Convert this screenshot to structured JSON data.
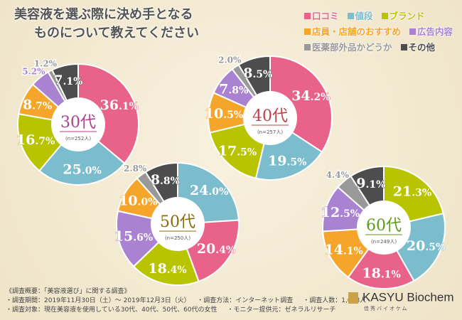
{
  "title": {
    "line1": "美容液を選ぶ際に決め手となる",
    "line2": "ものについて教えてください"
  },
  "legend": [
    {
      "label": "口コミ",
      "color": "#e9628a"
    },
    {
      "label": "値段",
      "color": "#7bbccd"
    },
    {
      "label": "ブランド",
      "color": "#b9c400"
    },
    {
      "label": "店員・店舗のおすすめ",
      "color": "#f5a52a"
    },
    {
      "label": "広告内容",
      "color": "#a982d2"
    },
    {
      "label": "医薬部外品かどうか",
      "color": "#999999"
    },
    {
      "label": "その他",
      "color": "#4d4d4d"
    }
  ],
  "chart_data": [
    {
      "type": "pie",
      "title": "30代",
      "n": "(n=252人)",
      "title_color": "#b0408f",
      "slices": [
        {
          "cat": "口コミ",
          "value": 36.1
        },
        {
          "cat": "値段",
          "value": 25.0
        },
        {
          "cat": "ブランド",
          "value": 16.7
        },
        {
          "cat": "店員・店舗のおすすめ",
          "value": 8.7
        },
        {
          "cat": "広告内容",
          "value": 5.2
        },
        {
          "cat": "医薬部外品かどうか",
          "value": 1.2
        },
        {
          "cat": "その他",
          "value": 7.1
        }
      ]
    },
    {
      "type": "pie",
      "title": "40代",
      "n": "(n=257人)",
      "title_color": "#c0404a",
      "slices": [
        {
          "cat": "口コミ",
          "value": 34.2
        },
        {
          "cat": "値段",
          "value": 19.5
        },
        {
          "cat": "ブランド",
          "value": 17.5
        },
        {
          "cat": "店員・店舗のおすすめ",
          "value": 10.5
        },
        {
          "cat": "広告内容",
          "value": 7.8
        },
        {
          "cat": "医薬部外品かどうか",
          "value": 2.0
        },
        {
          "cat": "その他",
          "value": 8.5
        }
      ]
    },
    {
      "type": "pie",
      "title": "50代",
      "n": "(n=250人)",
      "title_color": "#8a6a10",
      "slices": [
        {
          "cat": "値段",
          "value": 24.0
        },
        {
          "cat": "口コミ",
          "value": 20.4
        },
        {
          "cat": "ブランド",
          "value": 18.4
        },
        {
          "cat": "広告内容",
          "value": 15.6
        },
        {
          "cat": "店員・店舗のおすすめ",
          "value": 10.0
        },
        {
          "cat": "医薬部外品かどうか",
          "value": 2.8
        },
        {
          "cat": "その他",
          "value": 8.8
        }
      ]
    },
    {
      "type": "pie",
      "title": "60代",
      "n": "(n=249人)",
      "title_color": "#5f9a1a",
      "slices": [
        {
          "cat": "ブランド",
          "value": 21.3
        },
        {
          "cat": "値段",
          "value": 20.5
        },
        {
          "cat": "口コミ",
          "value": 18.1
        },
        {
          "cat": "店員・店舗のおすすめ",
          "value": 14.1
        },
        {
          "cat": "広告内容",
          "value": 12.5
        },
        {
          "cat": "医薬部外品かどうか",
          "value": 4.4
        },
        {
          "cat": "その他",
          "value": 9.1
        }
      ]
    }
  ],
  "footer": {
    "heading": "《調査概要：「美容液選び」に関する調査》",
    "period": "・調査期間：2019年11月30日（土）～ 2019年12月3日（火）",
    "method": "・調査方法：インターネット調査",
    "count": "・調査人数：1,008人",
    "target": "・調査対象：現在美容液を使用している30代、40代、50代、60代の女性",
    "monitor": "・モニター提供元：ゼネラルリサーチ"
  },
  "logo": {
    "name": "KASYU Biochem",
    "sub": "佳秀バイオケム"
  }
}
